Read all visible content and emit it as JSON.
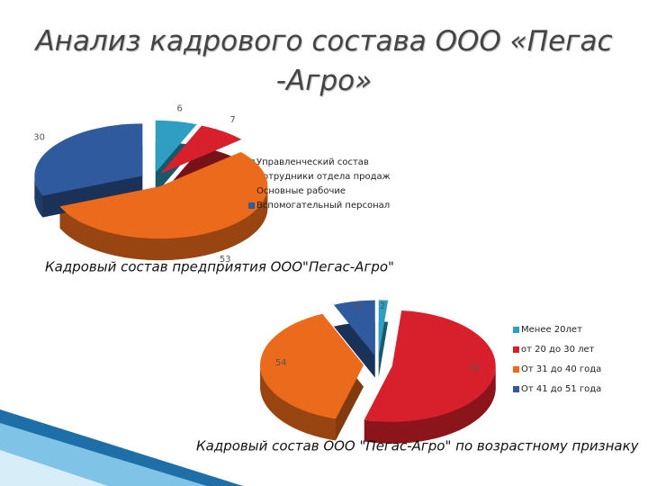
{
  "title": "Анализ кадрового состава ООО «Пегас -Агро»",
  "chart_data": [
    {
      "type": "pie",
      "title": "Кадровый состав предприятия ООО\"Пегас-Агро\"",
      "categories": [
        "Управленческий состав",
        "Сотрудники отдела продаж",
        "Основные рабочие",
        "Вспомогательный персонал"
      ],
      "values": [
        6,
        7,
        53,
        30
      ],
      "colors": [
        "#2e9fc3",
        "#d7202b",
        "#ec6a1c",
        "#2f5a9e"
      ]
    },
    {
      "type": "pie",
      "title": "Кадровый состав ООО \"Пегас-Агро\" по возрастному признаку",
      "categories": [
        "Менее 20лет",
        "от 20 до 30 лет",
        "От 31 до 40 года",
        "От 41 до 51 года"
      ],
      "values": [
        2,
        73,
        54,
        9
      ],
      "colors": [
        "#2e9fc3",
        "#d7202b",
        "#ec6a1c",
        "#2f5a9e"
      ]
    }
  ]
}
